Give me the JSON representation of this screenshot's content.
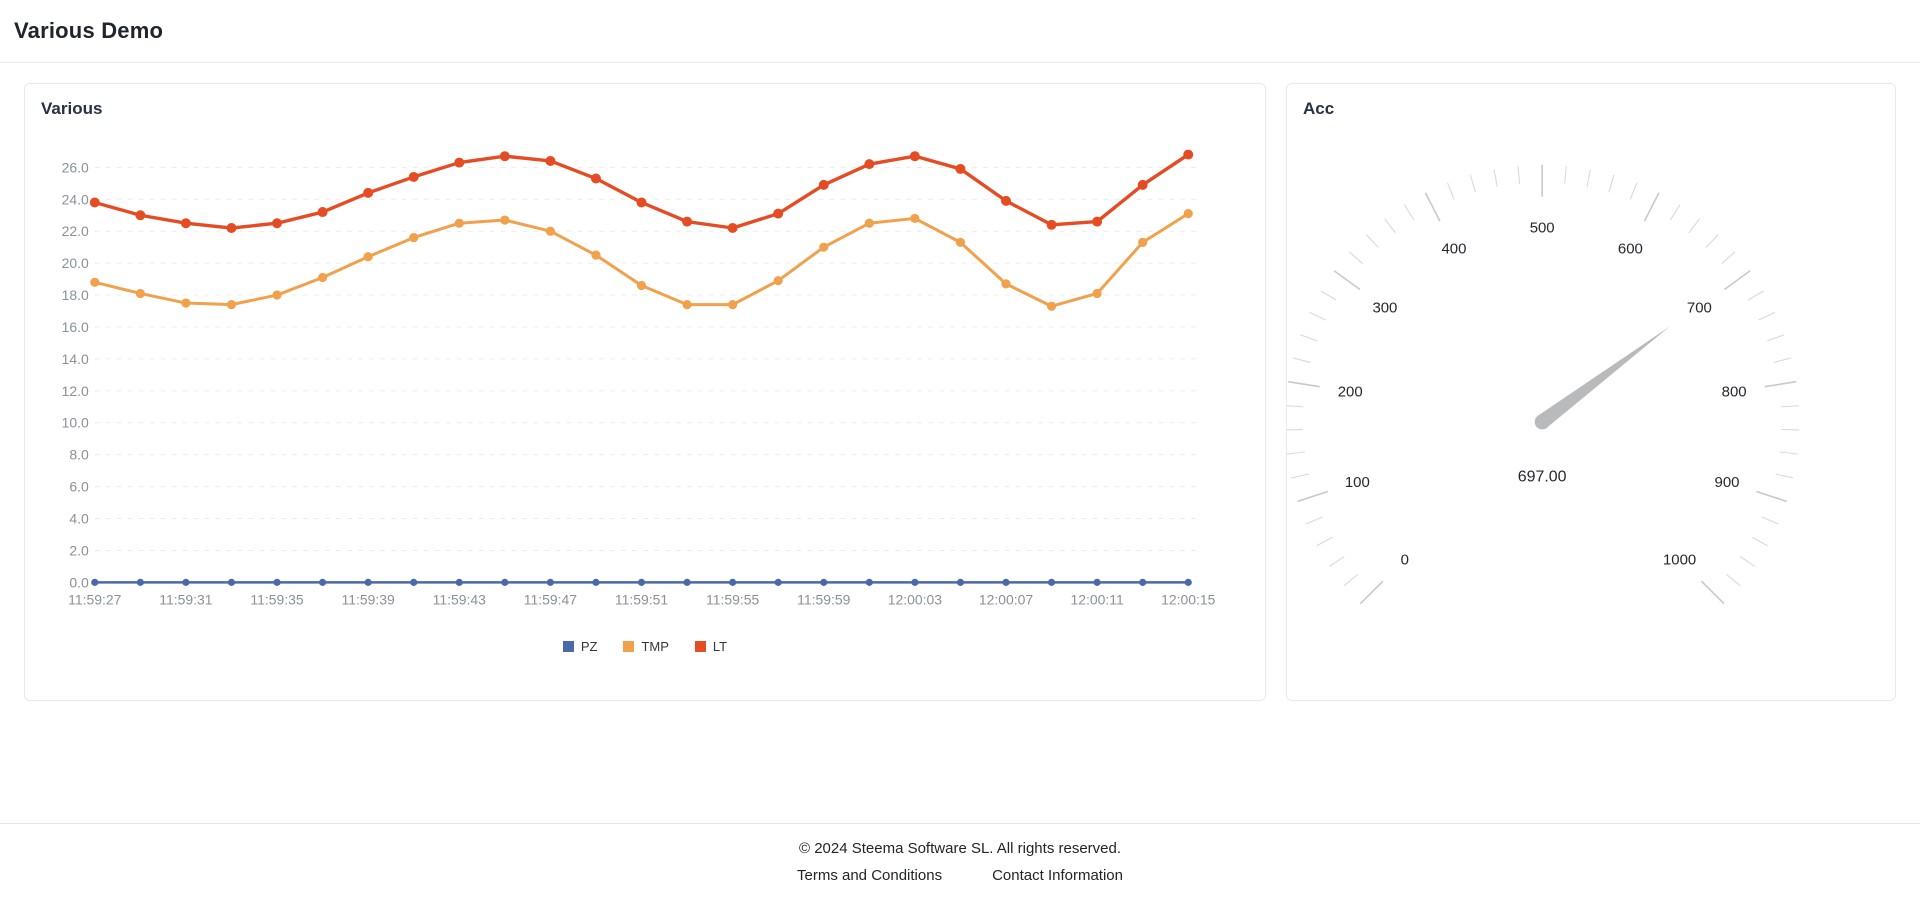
{
  "page": {
    "title": "Various Demo"
  },
  "footer": {
    "copyright": "© 2024 Steema Software SL. All rights reserved.",
    "links": [
      {
        "label": "Terms and Conditions"
      },
      {
        "label": "Contact Information"
      }
    ]
  },
  "chart_data": [
    {
      "type": "line",
      "title": "Various",
      "x": [
        "11:59:27",
        "11:59:29",
        "11:59:31",
        "11:59:33",
        "11:59:35",
        "11:59:37",
        "11:59:39",
        "11:59:41",
        "11:59:43",
        "11:59:45",
        "11:59:47",
        "11:59:49",
        "11:59:51",
        "11:59:53",
        "11:59:55",
        "11:59:57",
        "11:59:59",
        "12:00:01",
        "12:00:03",
        "12:00:05",
        "12:00:07",
        "12:00:09",
        "12:00:11",
        "12:00:13",
        "12:00:15"
      ],
      "x_label_every": 2,
      "y_ticks": [
        0,
        2,
        4,
        6,
        8,
        10,
        12,
        14,
        16,
        18,
        20,
        22,
        24,
        26
      ],
      "y_tick_labels": [
        "0.0",
        "2.0",
        "4.0",
        "6.0",
        "8.0",
        "10.0",
        "12.0",
        "14.0",
        "16.0",
        "18.0",
        "20.0",
        "22.0",
        "24.0",
        "26.0"
      ],
      "ylim": [
        0,
        27.1
      ],
      "grid": "horizontal-dashed",
      "legend_position": "bottom",
      "axis_label_color": "#8b9099",
      "grid_color": "#ececec",
      "series": [
        {
          "name": "PZ",
          "color": "#4a69a8",
          "values": [
            0,
            0,
            0,
            0,
            0,
            0,
            0,
            0,
            0,
            0,
            0,
            0,
            0,
            0,
            0,
            0,
            0,
            0,
            0,
            0,
            0,
            0,
            0,
            0,
            0
          ]
        },
        {
          "name": "TMP",
          "color": "#f1a04c",
          "values": [
            18.8,
            18.1,
            17.5,
            17.4,
            18.0,
            19.1,
            20.4,
            21.6,
            22.5,
            22.7,
            22.0,
            20.5,
            18.6,
            17.4,
            17.4,
            18.9,
            21.0,
            22.5,
            22.8,
            21.3,
            18.7,
            17.3,
            18.1,
            21.3,
            23.1
          ]
        },
        {
          "name": "LT",
          "color": "#e54c24",
          "values": [
            23.8,
            23.0,
            22.5,
            22.2,
            22.5,
            23.2,
            24.4,
            25.4,
            26.3,
            26.7,
            26.4,
            25.3,
            23.8,
            22.6,
            22.2,
            23.1,
            24.9,
            26.2,
            26.7,
            25.9,
            23.9,
            22.4,
            22.6,
            24.9,
            26.8
          ]
        }
      ]
    },
    {
      "type": "gauge",
      "title": "Acc",
      "min": 0,
      "max": 1000,
      "major_tick_step": 100,
      "minor_tick_step": 20,
      "tick_labels": [
        "0",
        "100",
        "200",
        "300",
        "400",
        "500",
        "600",
        "700",
        "800",
        "900",
        "1000"
      ],
      "start_angle_deg": 225,
      "sweep_deg": 270,
      "value": 697,
      "value_label": "697.00",
      "needle_color": "#b9babc",
      "major_tick_color": "#c7c9cc",
      "minor_tick_color": "#d8dadd",
      "label_color": "#23272e"
    }
  ]
}
